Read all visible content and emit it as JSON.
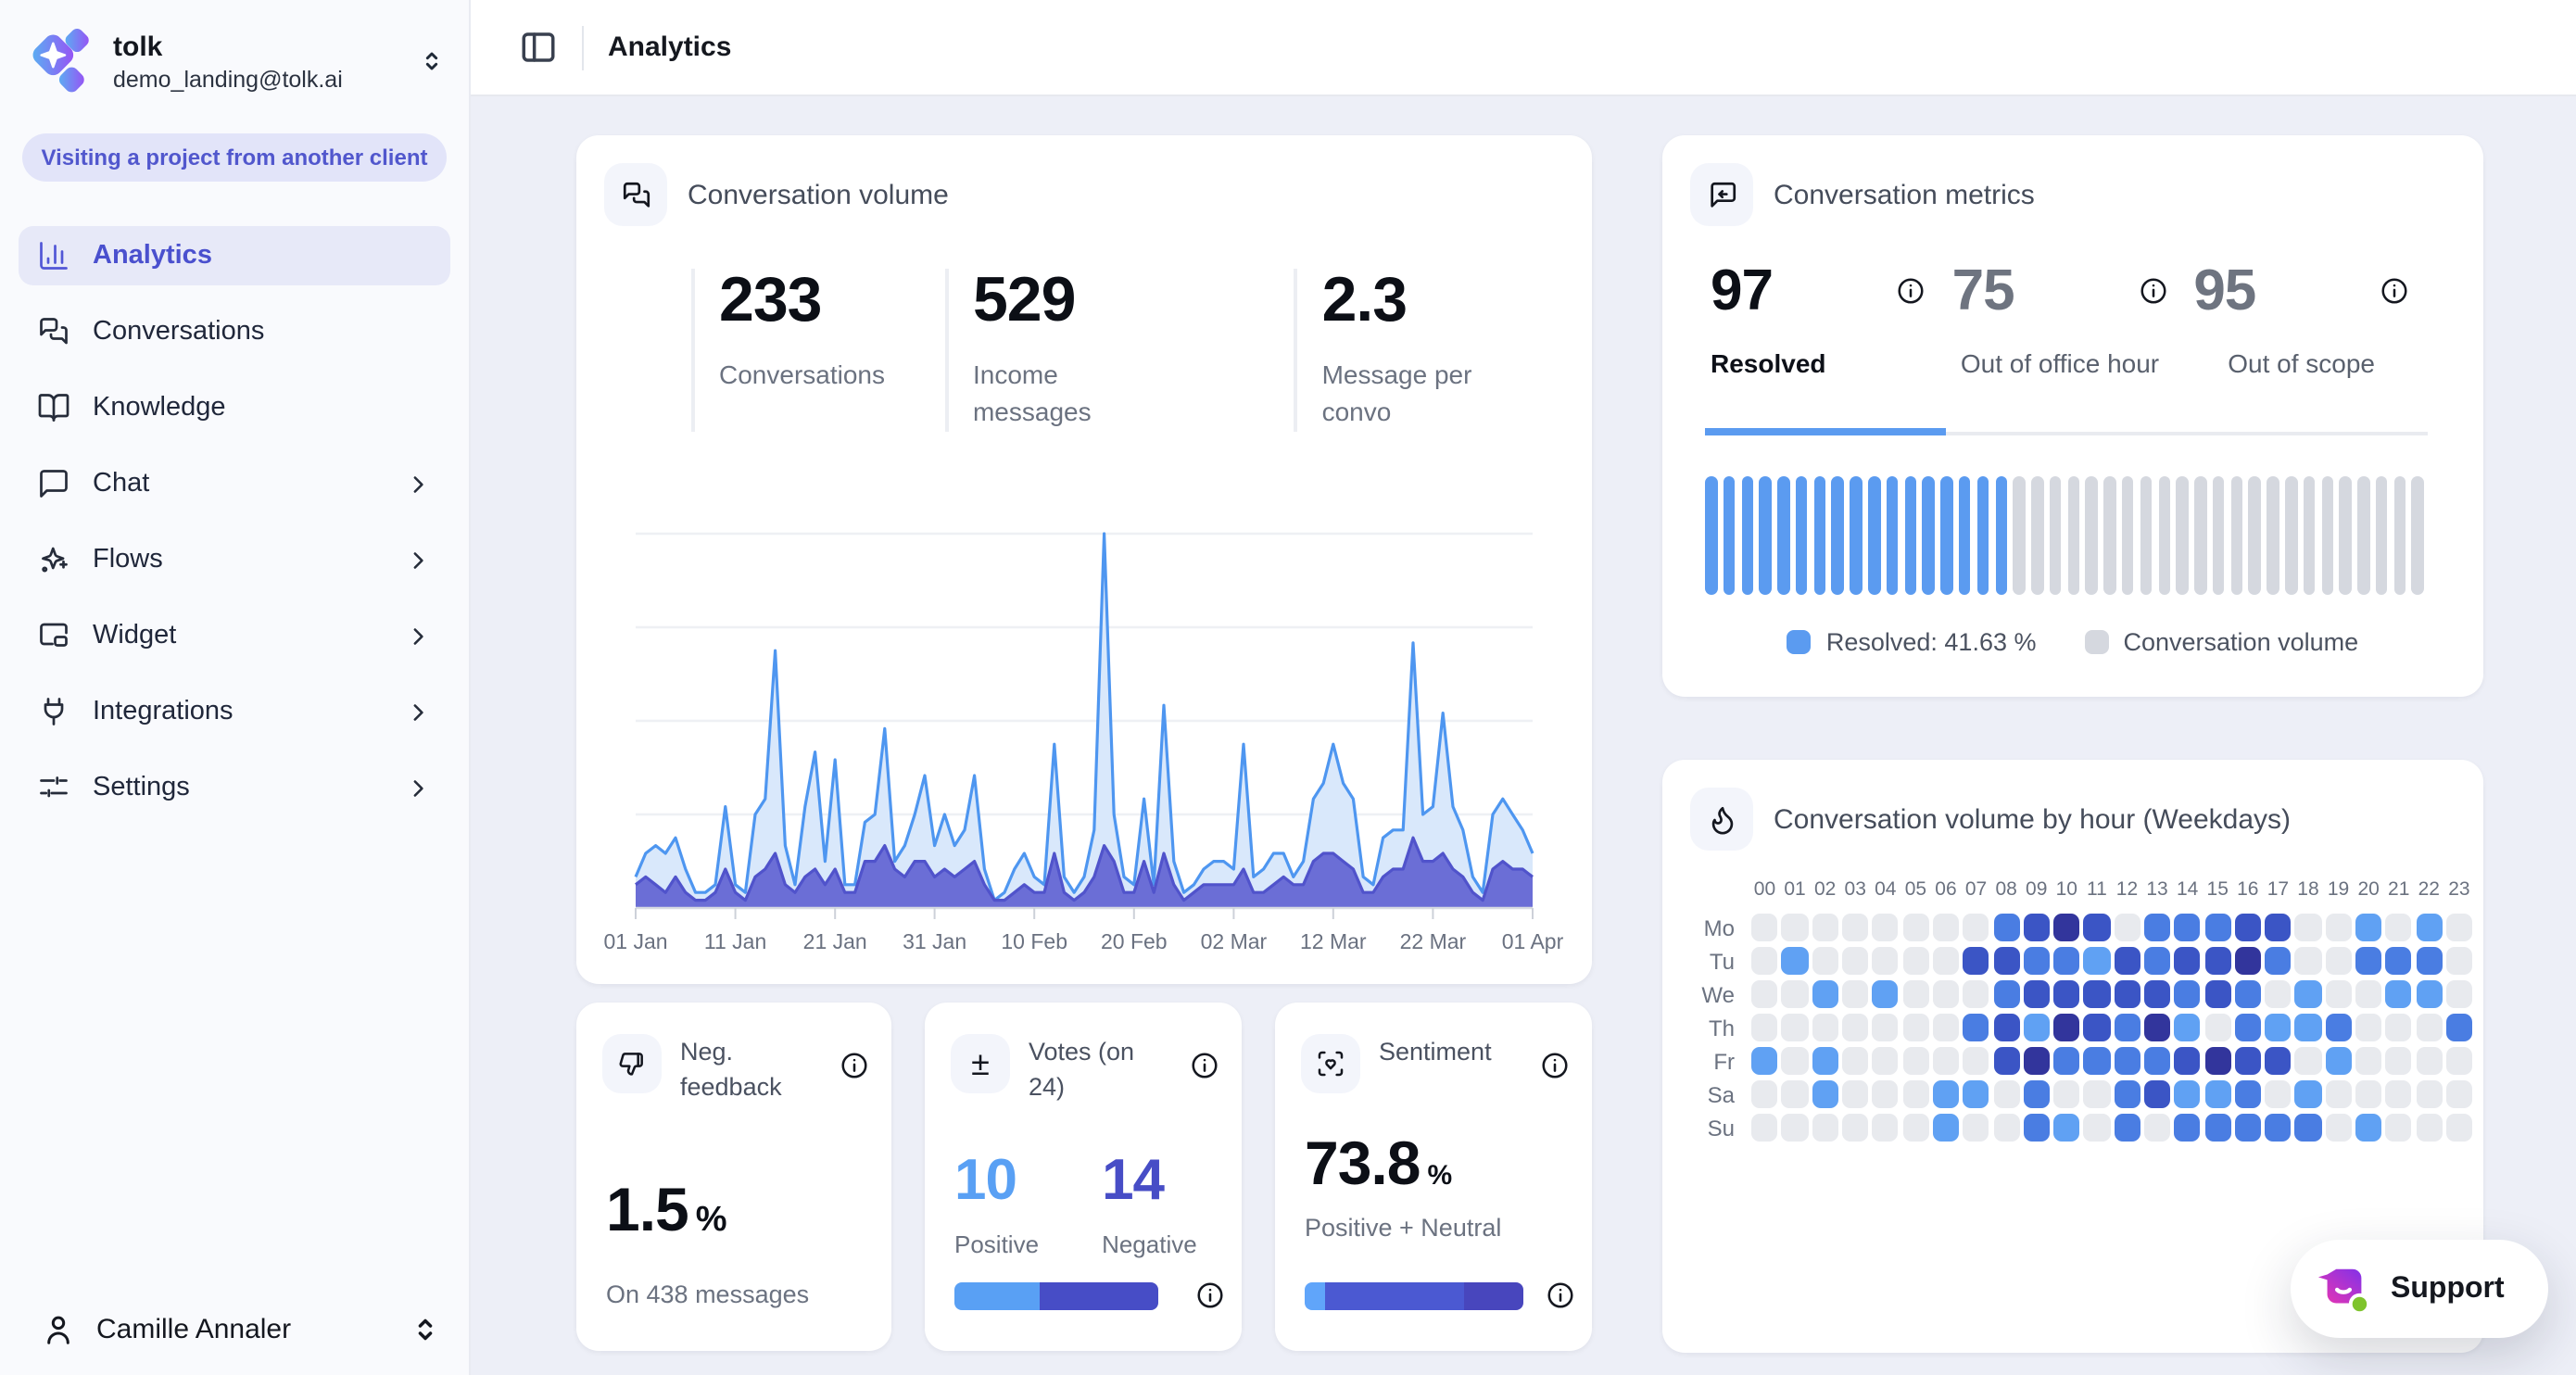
{
  "sidebar": {
    "workspace": {
      "name": "tolk",
      "email": "demo_landing@tolk.ai"
    },
    "badge": "Visiting a project from another client",
    "nav": [
      {
        "label": "Analytics",
        "icon": "bar-chart-icon",
        "active": true,
        "chevron": false
      },
      {
        "label": "Conversations",
        "icon": "chat-bubbles-icon",
        "active": false,
        "chevron": false
      },
      {
        "label": "Knowledge",
        "icon": "book-open-icon",
        "active": false,
        "chevron": false
      },
      {
        "label": "Chat",
        "icon": "chat-bubble-icon",
        "active": false,
        "chevron": true
      },
      {
        "label": "Flows",
        "icon": "sparkles-icon",
        "active": false,
        "chevron": true
      },
      {
        "label": "Widget",
        "icon": "widget-icon",
        "active": false,
        "chevron": true
      },
      {
        "label": "Integrations",
        "icon": "plug-icon",
        "active": false,
        "chevron": true
      },
      {
        "label": "Settings",
        "icon": "sliders-icon",
        "active": false,
        "chevron": true
      }
    ],
    "user": "Camille Annaler"
  },
  "topbar": {
    "title": "Analytics"
  },
  "cards": {
    "volume": {
      "title": "Conversation volume",
      "stats": [
        {
          "value": "233",
          "label": "Conversations"
        },
        {
          "value": "529",
          "label": "Income messages"
        },
        {
          "value": "2.3",
          "label": "Message per convo"
        }
      ]
    },
    "metrics": {
      "title": "Conversation metrics",
      "tabs": [
        {
          "value": "97",
          "label": "Resolved",
          "active": true
        },
        {
          "value": "75",
          "label": "Out of office hour",
          "active": false
        },
        {
          "value": "95",
          "label": "Out of scope",
          "active": false
        }
      ],
      "resolved_pct": 41.63,
      "bar_count": 40,
      "bar_filled": 17,
      "legend": [
        {
          "label": "Resolved: 41.63 %",
          "color": "#5b9bf0"
        },
        {
          "label": "Conversation volume",
          "color": "#d5d8df"
        }
      ]
    },
    "heatmap": {
      "title": "Conversation volume by hour (Weekdays)"
    },
    "neg_feedback": {
      "title": "Neg. feedback",
      "value": "1.5",
      "unit": "%",
      "sub": "On 438 messages"
    },
    "votes": {
      "title": "Votes (on 24)",
      "total": 24,
      "positive": {
        "value": "10",
        "label": "Positive",
        "color": "#59a0f4"
      },
      "negative": {
        "value": "14",
        "label": "Negative",
        "color": "#474dc6"
      }
    },
    "sentiment": {
      "title": "Sentiment",
      "value": "73.8",
      "unit": "%",
      "sub": "Positive + Neutral",
      "segments": [
        {
          "pct": 9,
          "color": "#60a5fa"
        },
        {
          "pct": 64,
          "color": "#4b59d2"
        },
        {
          "pct": 27,
          "color": "#4846bd"
        }
      ]
    }
  },
  "support": {
    "label": "Support"
  },
  "chart_data": [
    {
      "type": "area",
      "title": "Conversation volume",
      "xlabel": "",
      "ylabel": "",
      "x_unit": "day",
      "x_tick_labels": [
        "01 Jan",
        "11 Jan",
        "21 Jan",
        "31 Jan",
        "10 Feb",
        "20 Feb",
        "02 Mar",
        "12 Mar",
        "22 Mar",
        "01 Apr"
      ],
      "x_tick_positions": [
        0,
        10,
        20,
        30,
        40,
        50,
        60,
        70,
        80,
        90
      ],
      "ylim": [
        0,
        48
      ],
      "grid": true,
      "legend_position": "none",
      "series": [
        {
          "name": "Income messages",
          "fill": "#d9e8fb",
          "line": "#4e96f0",
          "values": [
            4,
            7,
            8,
            7,
            9,
            5,
            2,
            2,
            3,
            13,
            3,
            2,
            12,
            14,
            33,
            8,
            3,
            13,
            20,
            6,
            19,
            3,
            3,
            11,
            12,
            23,
            6,
            8,
            12,
            17,
            8,
            12,
            8,
            10,
            17,
            5,
            1,
            2,
            5,
            7,
            4,
            3,
            21,
            4,
            2,
            4,
            10,
            48,
            12,
            4,
            3,
            14,
            3,
            26,
            6,
            2,
            3,
            5,
            6,
            6,
            5,
            21,
            4,
            5,
            7,
            7,
            4,
            6,
            14,
            16,
            21,
            16,
            14,
            4,
            3,
            9,
            10,
            10,
            34,
            12,
            13,
            25,
            13,
            10,
            4,
            2,
            12,
            14,
            12,
            10,
            7
          ]
        },
        {
          "name": "Conversations",
          "fill": "#6b6ed6",
          "line": "#5053cb",
          "values": [
            3,
            4,
            3,
            2,
            4,
            2,
            1,
            1,
            2,
            5,
            2,
            1,
            4,
            5,
            7,
            3,
            2,
            4,
            5,
            3,
            5,
            2,
            2,
            6,
            6,
            8,
            5,
            4,
            6,
            6,
            4,
            5,
            4,
            5,
            6,
            3,
            1,
            1,
            2,
            3,
            2,
            2,
            7,
            2,
            1,
            2,
            4,
            8,
            6,
            2,
            2,
            6,
            2,
            7,
            3,
            1,
            2,
            3,
            3,
            3,
            3,
            5,
            2,
            2,
            3,
            4,
            3,
            3,
            6,
            7,
            7,
            6,
            5,
            2,
            2,
            4,
            5,
            5,
            9,
            6,
            6,
            7,
            5,
            4,
            2,
            1,
            5,
            6,
            5,
            5,
            4
          ]
        }
      ]
    },
    {
      "type": "heatmap",
      "title": "Conversation volume by hour (Weekdays)",
      "x_labels": [
        "00",
        "01",
        "02",
        "03",
        "04",
        "05",
        "06",
        "07",
        "08",
        "09",
        "10",
        "11",
        "12",
        "13",
        "14",
        "15",
        "16",
        "17",
        "18",
        "19",
        "20",
        "21",
        "22",
        "23"
      ],
      "y_labels": [
        "Mo",
        "Tu",
        "We",
        "Th",
        "Fr",
        "Sa",
        "Su"
      ],
      "palette": [
        "#e8eaee",
        "#60a1f3",
        "#4a7de2",
        "#3b55c5",
        "#32359c"
      ],
      "values": [
        [
          0,
          0,
          0,
          0,
          0,
          0,
          0,
          0,
          2,
          3,
          4,
          3,
          0,
          2,
          2,
          2,
          3,
          3,
          0,
          0,
          1,
          0,
          1,
          0
        ],
        [
          0,
          1,
          0,
          0,
          0,
          0,
          0,
          3,
          3,
          2,
          2,
          1,
          3,
          2,
          3,
          3,
          4,
          2,
          0,
          0,
          2,
          2,
          2,
          0
        ],
        [
          0,
          0,
          1,
          0,
          1,
          0,
          0,
          0,
          2,
          3,
          3,
          3,
          3,
          3,
          2,
          3,
          2,
          0,
          1,
          0,
          0,
          1,
          1,
          0
        ],
        [
          0,
          0,
          0,
          0,
          0,
          0,
          0,
          2,
          3,
          1,
          4,
          3,
          2,
          4,
          1,
          0,
          2,
          1,
          1,
          2,
          0,
          0,
          0,
          2
        ],
        [
          1,
          0,
          1,
          0,
          0,
          0,
          0,
          0,
          3,
          4,
          2,
          2,
          2,
          2,
          3,
          4,
          3,
          3,
          0,
          1,
          0,
          0,
          0,
          0
        ],
        [
          0,
          0,
          1,
          0,
          0,
          0,
          1,
          1,
          0,
          2,
          0,
          0,
          2,
          3,
          1,
          1,
          2,
          0,
          1,
          0,
          0,
          0,
          0,
          0
        ],
        [
          0,
          0,
          0,
          0,
          0,
          0,
          1,
          0,
          0,
          2,
          1,
          0,
          2,
          0,
          2,
          2,
          2,
          2,
          2,
          0,
          1,
          0,
          0,
          0
        ]
      ]
    }
  ]
}
